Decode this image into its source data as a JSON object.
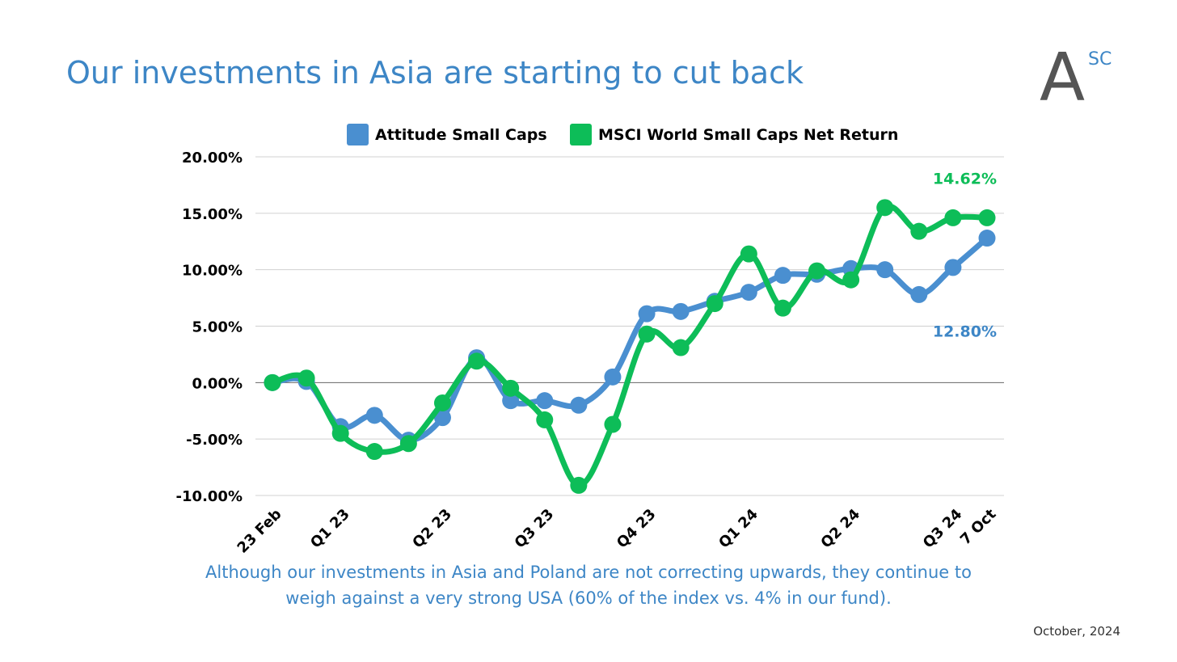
{
  "page": {
    "title": "Our investments in Asia are starting to cut back",
    "logo_text": "A",
    "logo_superscript": "SC",
    "caption": "Although our investments in Asia and Poland are not correcting upwards, they continue to weigh against a very strong USA (60% of the index vs. 4% in our fund).",
    "date": "October, 2024"
  },
  "colors": {
    "title": "#3d86c6",
    "attitude": "#4a8fd0",
    "msci": "#0dbd58",
    "grid": "#d0d0d0",
    "zero_line": "#666666",
    "logo": "#555555"
  },
  "chart_data": {
    "type": "line",
    "smooth": true,
    "markers": true,
    "x_count": 22,
    "x_tick_labels": [
      {
        "index": 0,
        "label": "23 Feb"
      },
      {
        "index": 2,
        "label": "Q1 23"
      },
      {
        "index": 5,
        "label": "Q2 23"
      },
      {
        "index": 8,
        "label": "Q3 23"
      },
      {
        "index": 11,
        "label": "Q4 23"
      },
      {
        "index": 14,
        "label": "Q1 24"
      },
      {
        "index": 17,
        "label": "Q2 24"
      },
      {
        "index": 20,
        "label": "Q3 24"
      },
      {
        "index": 21,
        "label": "7 Oct"
      }
    ],
    "y_ticks": [
      {
        "value": 20,
        "label": "20.00%"
      },
      {
        "value": 15,
        "label": "15.00%"
      },
      {
        "value": 10,
        "label": "10.00%"
      },
      {
        "value": 5,
        "label": "5.00%"
      },
      {
        "value": 0,
        "label": "0.00%"
      },
      {
        "value": -5,
        "label": "-5.00%"
      },
      {
        "value": -10,
        "label": "-10.00%"
      }
    ],
    "ylim": [
      -10,
      20
    ],
    "grid": true,
    "legend_position": "top",
    "series": [
      {
        "name": "Attitude Small Caps",
        "color": "#4a8fd0",
        "values": [
          0.0,
          0.1,
          -3.9,
          -2.9,
          -5.1,
          -3.1,
          2.2,
          -1.6,
          -1.6,
          -2.0,
          0.5,
          6.1,
          6.3,
          7.2,
          8.0,
          9.5,
          9.6,
          10.1,
          10.0,
          7.8,
          10.2,
          12.8
        ],
        "end_label": "12.80%"
      },
      {
        "name": "MSCI World Small Caps Net Return",
        "color": "#0dbd58",
        "values": [
          0.0,
          0.4,
          -4.5,
          -6.1,
          -5.4,
          -1.8,
          1.9,
          -0.5,
          -3.3,
          -9.1,
          -3.7,
          4.3,
          3.1,
          7.0,
          11.4,
          6.6,
          9.9,
          9.1,
          15.5,
          13.4,
          14.6,
          14.6
        ],
        "end_label": "14.62%"
      }
    ]
  }
}
